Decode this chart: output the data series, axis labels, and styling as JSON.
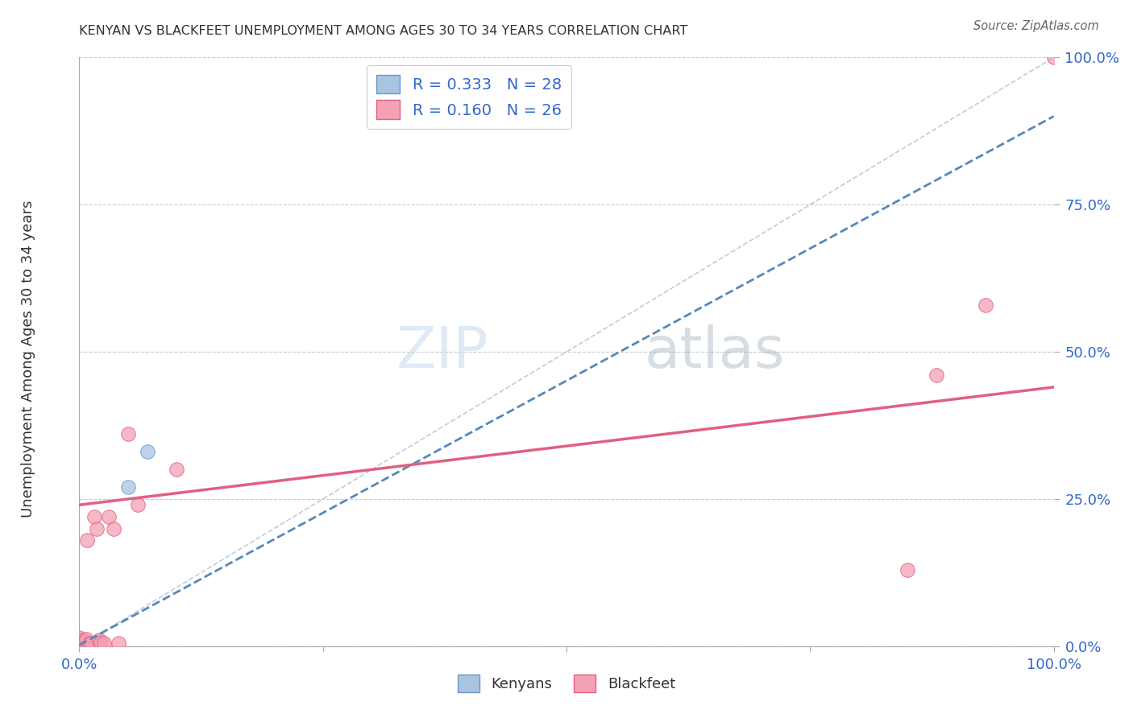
{
  "title": "KENYAN VS BLACKFEET UNEMPLOYMENT AMONG AGES 30 TO 34 YEARS CORRELATION CHART",
  "source": "Source: ZipAtlas.com",
  "ylabel": "Unemployment Among Ages 30 to 34 years",
  "xlim": [
    0.0,
    1.0
  ],
  "ylim": [
    0.0,
    1.0
  ],
  "xticks": [
    0.0,
    0.25,
    0.5,
    0.75,
    1.0
  ],
  "yticks": [
    0.0,
    0.25,
    0.5,
    0.75,
    1.0
  ],
  "xticklabels_bottom": [
    "0.0%",
    "",
    "",
    "",
    "100.0%"
  ],
  "yticklabels_right": [
    "0.0%",
    "25.0%",
    "50.0%",
    "75.0%",
    "100.0%"
  ],
  "kenyan_R": 0.333,
  "kenyan_N": 28,
  "blackfeet_R": 0.16,
  "blackfeet_N": 26,
  "kenyan_color": "#a8c4e0",
  "blackfeet_color": "#f4a0b5",
  "kenyan_edge_color": "#6699cc",
  "blackfeet_edge_color": "#e06080",
  "kenyan_trend_color": "#5588bb",
  "blackfeet_trend_color": "#e06080",
  "diagonal_color": "#c0ccdd",
  "background_color": "#ffffff",
  "kenyan_x": [
    0.0,
    0.0,
    0.0,
    0.0,
    0.0,
    0.0,
    0.0,
    0.0,
    0.0,
    0.0,
    0.0,
    0.0,
    0.003,
    0.003,
    0.005,
    0.005,
    0.005,
    0.007,
    0.008,
    0.009,
    0.01,
    0.011,
    0.012,
    0.015,
    0.018,
    0.02,
    0.05,
    0.07
  ],
  "kenyan_y": [
    0.0,
    0.0,
    0.0,
    0.0,
    0.002,
    0.003,
    0.004,
    0.005,
    0.006,
    0.007,
    0.009,
    0.01,
    0.0,
    0.003,
    0.002,
    0.005,
    0.007,
    0.003,
    0.0,
    0.004,
    0.003,
    0.005,
    0.001,
    0.003,
    0.005,
    0.003,
    0.27,
    0.33
  ],
  "blackfeet_x": [
    0.0,
    0.0,
    0.0,
    0.003,
    0.004,
    0.005,
    0.006,
    0.007,
    0.008,
    0.01,
    0.012,
    0.015,
    0.018,
    0.02,
    0.022,
    0.025,
    0.03,
    0.035,
    0.04,
    0.05,
    0.06,
    0.1,
    0.85,
    0.88,
    0.93,
    1.0
  ],
  "blackfeet_y": [
    0.005,
    0.008,
    0.015,
    0.003,
    0.01,
    0.005,
    0.008,
    0.012,
    0.18,
    0.005,
    0.005,
    0.22,
    0.2,
    0.01,
    0.007,
    0.005,
    0.22,
    0.2,
    0.005,
    0.36,
    0.24,
    0.3,
    0.13,
    0.46,
    0.58,
    1.0
  ],
  "kenyan_trend_x": [
    0.0,
    1.0
  ],
  "kenyan_trend_y": [
    0.002,
    0.9
  ],
  "blackfeet_trend_x": [
    0.0,
    1.0
  ],
  "blackfeet_trend_y": [
    0.24,
    0.44
  ],
  "watermark_zip": "ZIP",
  "watermark_atlas": "atlas",
  "legend_kenyan_label": "Kenyans",
  "legend_blackfeet_label": "Blackfeet"
}
